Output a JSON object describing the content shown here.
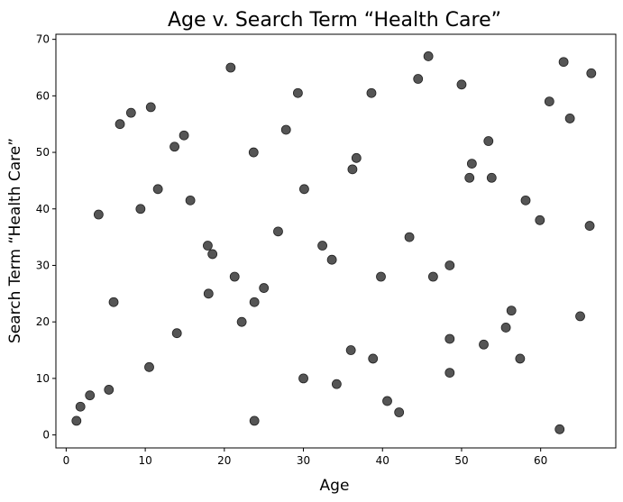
{
  "chart_data": {
    "type": "scatter",
    "title": "Age v. Search Term “Health Care”",
    "xlabel": "Age",
    "ylabel": "Search Term “Health Care”",
    "xlim": [
      -1.3,
      69.5
    ],
    "ylim": [
      -2.3,
      70.9
    ],
    "xticks": [
      0,
      10,
      20,
      30,
      40,
      50,
      60
    ],
    "yticks": [
      0,
      10,
      20,
      30,
      40,
      50,
      60,
      70
    ],
    "grid": false,
    "marker_color": "#555555",
    "x": [
      1.3,
      1.8,
      3.0,
      4.1,
      5.4,
      6.0,
      6.8,
      8.2,
      9.4,
      10.5,
      10.7,
      11.6,
      13.7,
      14.0,
      14.9,
      15.7,
      17.9,
      18.0,
      18.5,
      20.8,
      21.3,
      22.2,
      23.7,
      23.8,
      23.8,
      25.0,
      26.8,
      27.8,
      29.3,
      30.0,
      30.1,
      32.4,
      33.6,
      34.2,
      36.0,
      36.2,
      36.7,
      38.6,
      38.8,
      39.8,
      40.6,
      42.1,
      43.4,
      44.5,
      45.8,
      46.4,
      48.5,
      48.5,
      48.5,
      50.0,
      51.0,
      51.3,
      52.8,
      53.4,
      53.8,
      55.6,
      56.3,
      57.4,
      58.1,
      59.9,
      61.1,
      62.4,
      62.9,
      63.7,
      65.0,
      66.2,
      66.4
    ],
    "y": [
      2.5,
      5.0,
      7.0,
      39.0,
      8.0,
      23.5,
      55.0,
      57.0,
      40.0,
      12.0,
      58.0,
      43.5,
      51.0,
      18.0,
      53.0,
      41.5,
      33.5,
      25.0,
      32.0,
      65.0,
      28.0,
      20.0,
      50.0,
      23.5,
      2.5,
      26.0,
      36.0,
      54.0,
      60.5,
      10.0,
      43.5,
      33.5,
      31.0,
      9.0,
      15.0,
      47.0,
      49.0,
      60.5,
      13.5,
      28.0,
      6.0,
      4.0,
      35.0,
      63.0,
      67.0,
      28.0,
      30.0,
      17.0,
      11.0,
      62.0,
      45.5,
      48.0,
      16.0,
      52.0,
      45.5,
      19.0,
      22.0,
      13.5,
      41.5,
      38.0,
      59.0,
      1.0,
      66.0,
      56.0,
      21.0,
      37.0,
      64.0
    ]
  }
}
